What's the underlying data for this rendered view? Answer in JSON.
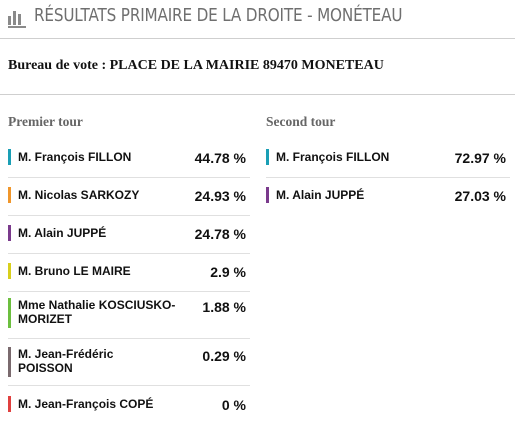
{
  "header": {
    "title": "Résultats primaire de la droite - Monéteau",
    "icon": "bar-chart-icon"
  },
  "bureau": "Bureau de vote : PLACE DE LA MAIRIE 89470 MONETEAU",
  "premier_tour": {
    "title": "Premier tour",
    "candidates": [
      {
        "name": "M. François FILLON",
        "percent": "44.78 %",
        "color": "#1a9fb5"
      },
      {
        "name": "M. Nicolas SARKOZY",
        "percent": "24.93 %",
        "color": "#f0962b"
      },
      {
        "name": "M. Alain JUPPÉ",
        "percent": "24.78 %",
        "color": "#7a3a8c"
      },
      {
        "name": "M. Bruno LE MAIRE",
        "percent": "2.9 %",
        "color": "#d8cf1c"
      },
      {
        "name": "Mme Nathalie KOSCIUSKO-MORIZET",
        "percent": "1.88 %",
        "color": "#6cbf3f"
      },
      {
        "name": "M. Jean-Frédéric POISSON",
        "percent": "0.29 %",
        "color": "#7a6a6e"
      },
      {
        "name": "M. Jean-François COPÉ",
        "percent": "0 %",
        "color": "#e0403f"
      }
    ]
  },
  "second_tour": {
    "title": "Second tour",
    "candidates": [
      {
        "name": "M. François FILLON",
        "percent": "72.97 %",
        "color": "#1a9fb5"
      },
      {
        "name": "M. Alain JUPPÉ",
        "percent": "27.03 %",
        "color": "#7a3a8c"
      }
    ]
  }
}
